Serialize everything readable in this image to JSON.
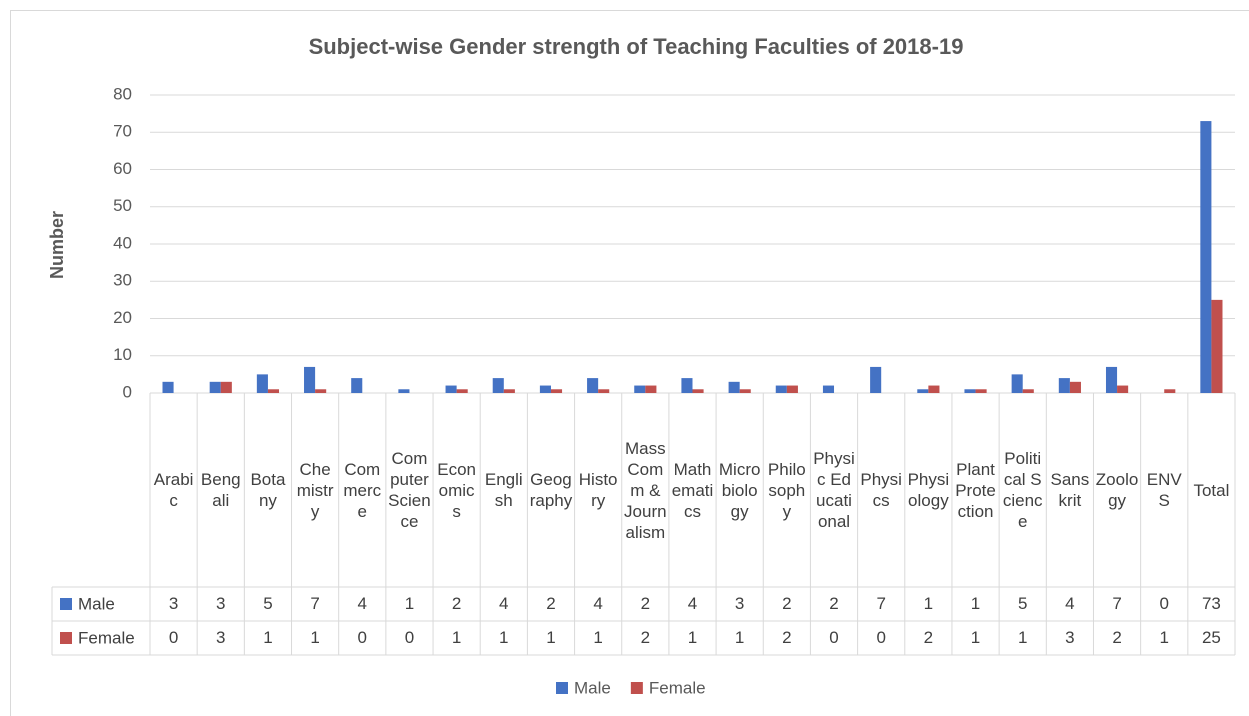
{
  "chart_data": {
    "type": "bar",
    "title": "Subject-wise Gender strength of Teaching Faculties of 2018-19",
    "y_label": "Number",
    "categories": [
      "Arabic",
      "Bengali",
      "Botany",
      "Chemistry",
      "Commerce",
      "Computer Science",
      "Economics",
      "English",
      "Geography",
      "History",
      "Mass Comm & Journalism",
      "Mathematics",
      "Microbiology",
      "Philosophy",
      "Physic Educational",
      "Physics",
      "Physiology",
      "Plant Protection",
      "Political Science",
      "Sanskrit",
      "Zoology",
      "ENVS",
      "Total"
    ],
    "series": [
      {
        "name": "Male",
        "color": "#4472c4",
        "values": [
          3,
          3,
          5,
          7,
          4,
          1,
          2,
          4,
          2,
          4,
          2,
          4,
          3,
          2,
          2,
          7,
          1,
          1,
          5,
          4,
          7,
          0,
          73
        ]
      },
      {
        "name": "Female",
        "color": "#c0504d",
        "values": [
          0,
          3,
          1,
          1,
          0,
          0,
          1,
          1,
          1,
          1,
          2,
          1,
          1,
          2,
          0,
          0,
          2,
          1,
          1,
          3,
          2,
          1,
          25
        ]
      }
    ],
    "ylim": [
      0,
      80
    ],
    "yticks": [
      0,
      10,
      20,
      30,
      40,
      50,
      60,
      70,
      80
    ],
    "grid": true,
    "legend": "bottom"
  }
}
